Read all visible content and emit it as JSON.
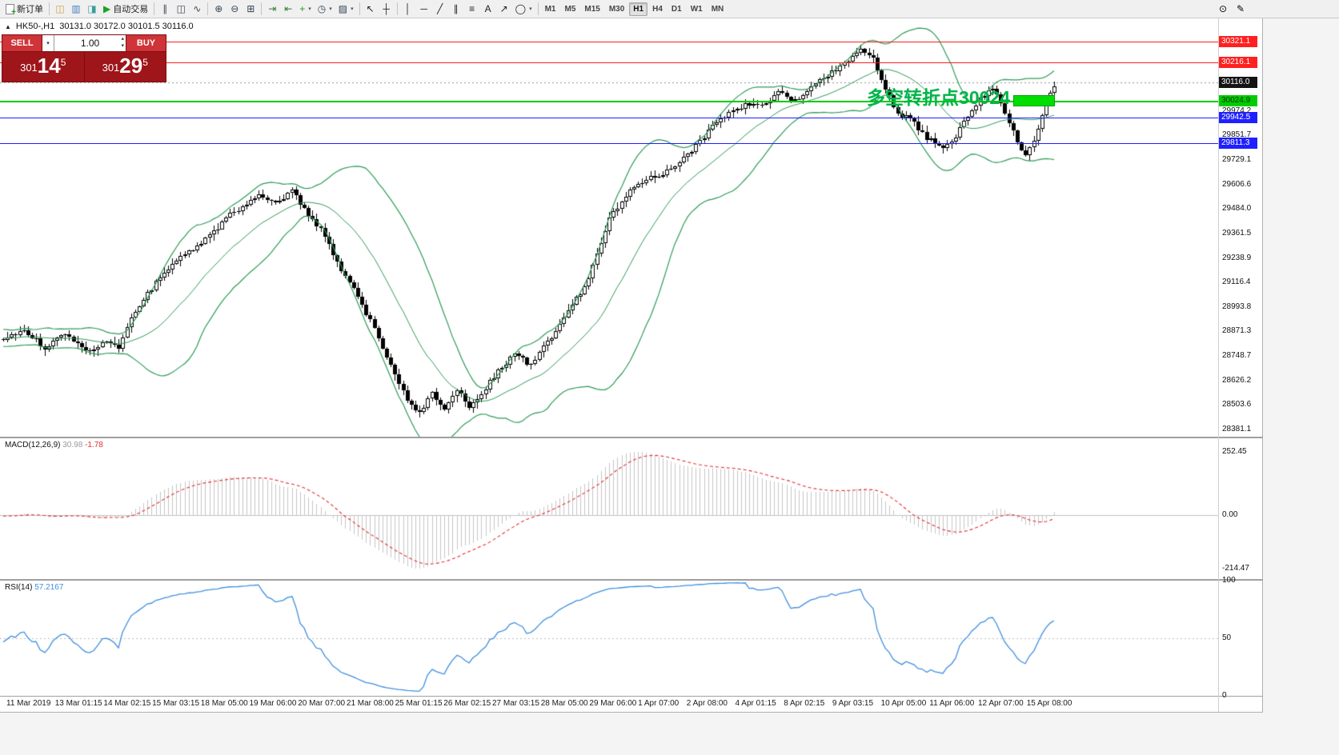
{
  "app": {
    "name": "MetaTrader 4 terminal"
  },
  "toolbar": {
    "groups": [
      {
        "name": "trade",
        "items": [
          {
            "name": "new-order-button",
            "css_icon": "page-plus",
            "icon": "new-order-icon",
            "label": "新订单"
          }
        ]
      },
      {
        "name": "windows",
        "items": [
          {
            "name": "new-chart-button",
            "icon": "chart-icon",
            "glyph": "◫",
            "icon_color": "#c8a23c"
          },
          {
            "name": "profiles-button",
            "icon": "profiles-icon",
            "glyph": "▥",
            "icon_color": "#4a7ebb"
          },
          {
            "name": "data-window-button",
            "icon": "data-window-icon",
            "glyph": "◨",
            "icon_color": "#3a9d9d"
          },
          {
            "name": "autotrading-button",
            "icon": "autotrading-play-icon",
            "glyph": "▶",
            "icon_color": "#1fa01f",
            "label": "自动交易"
          }
        ]
      },
      {
        "name": "chart-type",
        "items": [
          {
            "name": "bar-chart-button",
            "icon": "bar-chart-icon",
            "glyph": "∥",
            "icon_color": "#445"
          },
          {
            "name": "candlestick-chart-button",
            "icon": "candlestick-icon",
            "glyph": "◫",
            "icon_color": "#445"
          },
          {
            "name": "line-chart-button",
            "icon": "line-chart-icon",
            "glyph": "∿",
            "icon_color": "#445"
          }
        ]
      },
      {
        "name": "zoom",
        "items": [
          {
            "name": "zoom-in-button",
            "icon": "zoom-in-icon",
            "glyph": "⊕",
            "icon_color": "#345"
          },
          {
            "name": "zoom-out-button",
            "icon": "zoom-out-icon",
            "glyph": "⊖",
            "icon_color": "#345"
          },
          {
            "name": "tile-windows-button",
            "icon": "tile-windows-icon",
            "glyph": "⊞",
            "icon_color": "#345"
          }
        ]
      },
      {
        "name": "chart-tools",
        "items": [
          {
            "name": "auto-scroll-button",
            "icon": "auto-scroll-icon",
            "glyph": "⇥",
            "icon_color": "#2d7d2d"
          },
          {
            "name": "chart-shift-button",
            "icon": "chart-shift-icon",
            "glyph": "⇤",
            "icon_color": "#2d7d2d"
          },
          {
            "name": "indicators-button",
            "icon": "indicators-plus-icon",
            "glyph": "+",
            "icon_color": "#1fa01f",
            "dropdown": true
          },
          {
            "name": "periods-button",
            "icon": "clock-icon",
            "glyph": "◷",
            "icon_color": "#345",
            "dropdown": true
          },
          {
            "name": "templates-button",
            "icon": "template-icon",
            "glyph": "▨",
            "icon_color": "#345",
            "dropdown": true
          }
        ]
      },
      {
        "name": "cursor",
        "items": [
          {
            "name": "cursor-button",
            "icon": "cursor-arrow-icon",
            "glyph": "↖",
            "icon_color": "#222"
          },
          {
            "name": "crosshair-button",
            "icon": "crosshair-icon",
            "glyph": "┼",
            "icon_color": "#222"
          }
        ]
      },
      {
        "name": "objects",
        "items": [
          {
            "name": "vertical-line-button",
            "icon": "vertical-line-icon",
            "glyph": "│",
            "icon_color": "#222"
          },
          {
            "name": "horizontal-line-button",
            "icon": "horizontal-line-icon",
            "glyph": "─",
            "icon_color": "#222"
          },
          {
            "name": "trendline-button",
            "icon": "trendline-icon",
            "glyph": "╱",
            "icon_color": "#222"
          },
          {
            "name": "channel-button",
            "icon": "channel-icon",
            "glyph": "∥",
            "icon_color": "#222"
          },
          {
            "name": "fibonacci-button",
            "icon": "fibonacci-icon",
            "glyph": "≡",
            "icon_color": "#222"
          },
          {
            "name": "text-button",
            "icon": "text-icon",
            "glyph": "A",
            "icon_color": "#222"
          },
          {
            "name": "arrow-object-button",
            "icon": "arrow-object-icon",
            "glyph": "↗",
            "icon_color": "#222"
          },
          {
            "name": "shapes-button",
            "icon": "ellipse-icon",
            "glyph": "◯",
            "icon_color": "#222",
            "dropdown": true
          }
        ]
      }
    ],
    "timeframes": {
      "items": [
        "M1",
        "M5",
        "M15",
        "M30",
        "H1",
        "H4",
        "D1",
        "W1",
        "MN"
      ],
      "active": "H1"
    },
    "right_items": [
      {
        "name": "magnifier-button",
        "icon": "magnifier-icon",
        "glyph": "⊙"
      },
      {
        "name": "edit-button",
        "icon": "pencil-icon",
        "glyph": "✎"
      }
    ]
  },
  "chart": {
    "symbol_info": {
      "toggle_icon": "▲",
      "symbol_period": "HK50-,H1",
      "ohlc_text": "30131.0 30172.0 30101.5 30116.0"
    },
    "one_click": {
      "sell_label": "SELL",
      "buy_label": "BUY",
      "lot": "1.00",
      "sell_price": {
        "prefix": "301",
        "big": "14",
        "frac": "5"
      },
      "buy_price": {
        "prefix": "301",
        "big": "29",
        "frac": "5"
      },
      "button_color": "#cf3438",
      "panel_color": "#9e151a"
    },
    "current_price": {
      "label": "30116.0",
      "bg": "#141414"
    },
    "annotation": {
      "text": "多空转折点30024",
      "color": "#00b44a",
      "rect_color": "#00dd00"
    },
    "horizontal_lines": [
      {
        "name": "resistance-line-1",
        "price": 30321.1,
        "label": "30321.1",
        "color": "#ff2020",
        "text_color": "#ffffff",
        "thickness": 1
      },
      {
        "name": "resistance-line-2",
        "price": 30216.1,
        "label": "30216.1",
        "color": "#ff2020",
        "text_color": "#ffffff",
        "thickness": 1
      },
      {
        "name": "pivot-line",
        "price": 30024.9,
        "label": "30024.9",
        "color": "#00cc00",
        "text_color": "#063300",
        "thickness": 2
      },
      {
        "name": "support-line-1",
        "price": 29942.5,
        "label": "29942.5",
        "color": "#2020ff",
        "text_color": "#ffffff",
        "thickness": 1
      },
      {
        "name": "support-line-2",
        "price": 29811.3,
        "label": "29811.3",
        "color": "#2020ff",
        "text_color": "#ffffff",
        "thickness": 1
      }
    ],
    "y_ticks": [
      "29974.2",
      "29851.7",
      "29729.1",
      "29606.6",
      "29484.0",
      "29361.5",
      "29238.9",
      "29116.4",
      "28993.8",
      "28871.3",
      "28748.7",
      "28626.2",
      "28503.6",
      "28381.1"
    ]
  },
  "macd": {
    "title": "MACD(12,26,9)",
    "value": "30.98",
    "signal": "-1.78",
    "ticks": [
      "252.45",
      "0.00",
      "-214.47"
    ],
    "histogram_color": "#c6c6c6",
    "signal_color": "#e03030"
  },
  "rsi": {
    "title": "RSI(14)",
    "value": "57.2167",
    "ticks": [
      "100",
      "50",
      "0"
    ],
    "line_color": "#3f8ede"
  },
  "chart_data": {
    "type": "candlestick",
    "symbol": "HK50-",
    "timeframe": "H1",
    "current_ohlc": {
      "open": 30131.0,
      "high": 30172.0,
      "low": 30101.5,
      "close": 30116.0
    },
    "bid": "30114.5",
    "ask": "30129.5",
    "visible_bars": 256,
    "price_range": [
      28345,
      30437
    ],
    "grid": "off",
    "price_keyframes": [
      [
        0,
        28840
      ],
      [
        5,
        28880
      ],
      [
        10,
        28790
      ],
      [
        15,
        28860
      ],
      [
        20,
        28770
      ],
      [
        25,
        28820
      ],
      [
        28,
        28790
      ],
      [
        31,
        28950
      ],
      [
        36,
        29090
      ],
      [
        41,
        29220
      ],
      [
        46,
        29280
      ],
      [
        50,
        29350
      ],
      [
        54,
        29440
      ],
      [
        58,
        29500
      ],
      [
        62,
        29560
      ],
      [
        66,
        29520
      ],
      [
        70,
        29570
      ],
      [
        74,
        29460
      ],
      [
        78,
        29350
      ],
      [
        82,
        29180
      ],
      [
        86,
        29040
      ],
      [
        90,
        28890
      ],
      [
        94,
        28700
      ],
      [
        98,
        28530
      ],
      [
        101,
        28470
      ],
      [
        104,
        28560
      ],
      [
        107,
        28480
      ],
      [
        110,
        28590
      ],
      [
        113,
        28500
      ],
      [
        116,
        28560
      ],
      [
        120,
        28670
      ],
      [
        124,
        28760
      ],
      [
        128,
        28700
      ],
      [
        131,
        28800
      ],
      [
        134,
        28870
      ],
      [
        138,
        29010
      ],
      [
        141,
        29090
      ],
      [
        144,
        29260
      ],
      [
        147,
        29440
      ],
      [
        150,
        29520
      ],
      [
        153,
        29600
      ],
      [
        157,
        29650
      ],
      [
        160,
        29660
      ],
      [
        164,
        29720
      ],
      [
        168,
        29800
      ],
      [
        172,
        29900
      ],
      [
        176,
        29960
      ],
      [
        180,
        30010
      ],
      [
        184,
        30000
      ],
      [
        188,
        30060
      ],
      [
        192,
        30030
      ],
      [
        196,
        30090
      ],
      [
        200,
        30150
      ],
      [
        204,
        30210
      ],
      [
        208,
        30280
      ],
      [
        211,
        30230
      ],
      [
        214,
        30090
      ],
      [
        217,
        29960
      ],
      [
        220,
        29930
      ],
      [
        224,
        29840
      ],
      [
        228,
        29780
      ],
      [
        231,
        29850
      ],
      [
        234,
        29950
      ],
      [
        237,
        30040
      ],
      [
        240,
        30090
      ],
      [
        242,
        30020
      ],
      [
        244,
        29920
      ],
      [
        246,
        29820
      ],
      [
        248,
        29740
      ],
      [
        250,
        29820
      ],
      [
        252,
        29950
      ],
      [
        254,
        30060
      ],
      [
        255,
        30110
      ]
    ],
    "indicators": [
      {
        "name": "Bollinger Bands",
        "period": 20,
        "deviation": 2,
        "color": "#2e9b57"
      },
      {
        "name": "MACD",
        "fast": 12,
        "slow": 26,
        "signal": 9,
        "value": 30.98,
        "signal_value": -1.78,
        "axis_range": [
          -214.47,
          252.45
        ]
      },
      {
        "name": "RSI",
        "period": 14,
        "value": 57.2167,
        "axis_range": [
          0,
          100
        ]
      }
    ],
    "time_labels": [
      "11 Mar 2019",
      "13 Mar 01:15",
      "14 Mar 02:15",
      "15 Mar 03:15",
      "18 Mar 05:00",
      "19 Mar 06:00",
      "20 Mar 07:00",
      "21 Mar 08:00",
      "25 Mar 01:15",
      "26 Mar 02:15",
      "27 Mar 03:15",
      "28 Mar 05:00",
      "29 Mar 06:00",
      "1 Apr 07:00",
      "2 Apr 08:00",
      "4 Apr 01:15",
      "8 Apr 02:15",
      "9 Apr 03:15",
      "10 Apr 05:00",
      "11 Apr 06:00",
      "12 Apr 07:00",
      "15 Apr 08:00"
    ]
  }
}
